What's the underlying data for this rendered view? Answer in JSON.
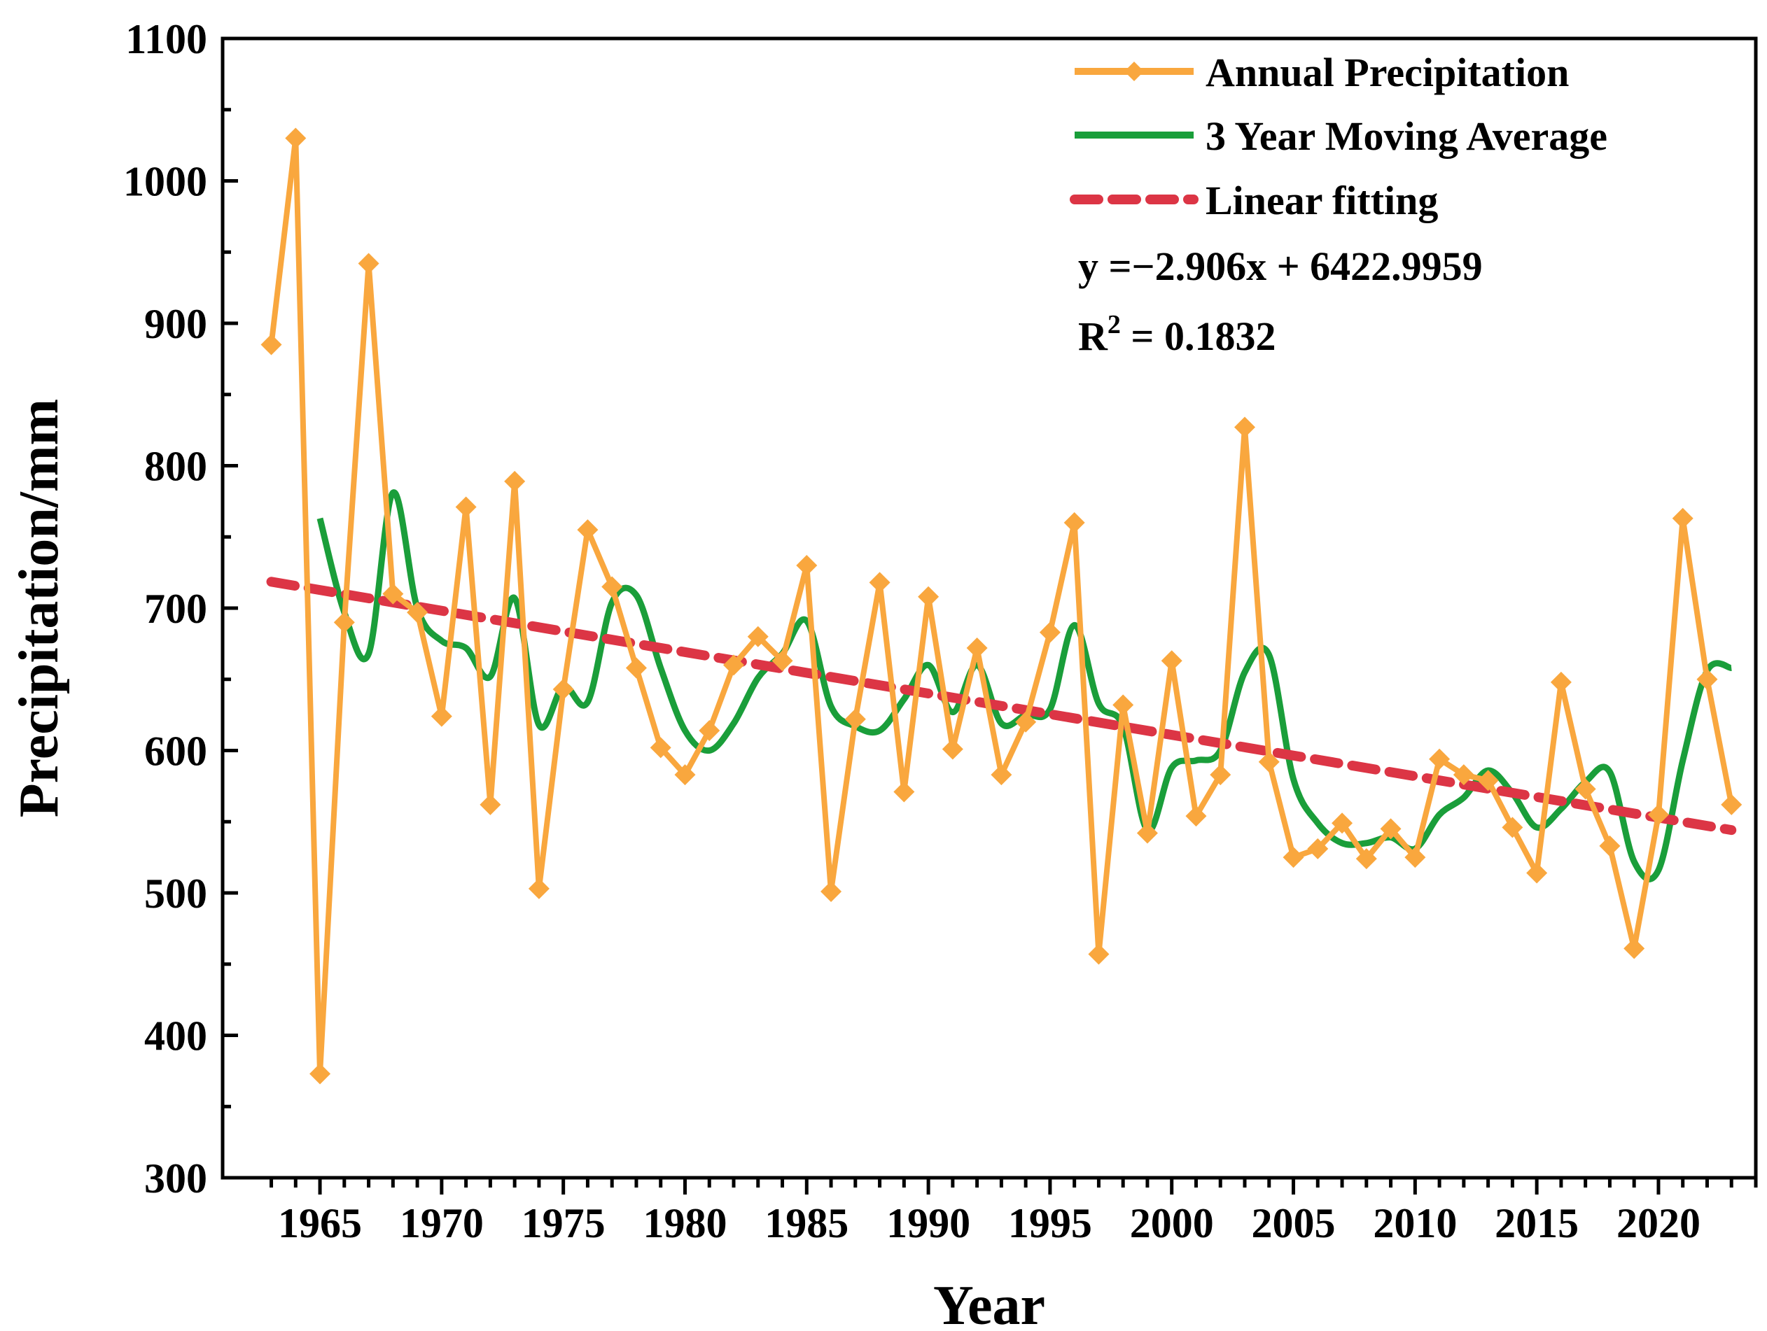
{
  "chart_data": {
    "type": "line",
    "title": "",
    "xlabel": "Year",
    "ylabel": "Precipitation/mm",
    "xlim": [
      1961,
      2024
    ],
    "ylim": [
      300,
      1100
    ],
    "x_ticks": [
      1965,
      1970,
      1975,
      1980,
      1985,
      1990,
      1995,
      2000,
      2005,
      2010,
      2015,
      2020
    ],
    "y_ticks": [
      300,
      400,
      500,
      600,
      700,
      800,
      900,
      1000,
      1100
    ],
    "x": [
      1963,
      1964,
      1965,
      1966,
      1967,
      1968,
      1969,
      1970,
      1971,
      1972,
      1973,
      1974,
      1975,
      1976,
      1977,
      1978,
      1979,
      1980,
      1981,
      1982,
      1983,
      1984,
      1985,
      1986,
      1987,
      1988,
      1989,
      1990,
      1991,
      1992,
      1993,
      1994,
      1995,
      1996,
      1997,
      1998,
      1999,
      2000,
      2001,
      2002,
      2003,
      2004,
      2005,
      2006,
      2007,
      2008,
      2009,
      2010,
      2011,
      2012,
      2013,
      2014,
      2015,
      2016,
      2017,
      2018,
      2019,
      2020,
      2021,
      2022,
      2023
    ],
    "series": [
      {
        "name": "Annual Precipitation",
        "color": "#F9A73E",
        "marker": "diamond",
        "values": [
          885,
          1030,
          373,
          690,
          942,
          710,
          697,
          624,
          771,
          562,
          789,
          503,
          643,
          755,
          715,
          658,
          602,
          583,
          614,
          660,
          680,
          663,
          730,
          501,
          622,
          718,
          571,
          708,
          601,
          672,
          583,
          620,
          683,
          760,
          457,
          632,
          542,
          663,
          554,
          583,
          827,
          592,
          525,
          531,
          549,
          524,
          545,
          525,
          594,
          583,
          579,
          546,
          514,
          648,
          573,
          533,
          461,
          555,
          763,
          650,
          562
        ]
      },
      {
        "name": "3 Year Moving Average",
        "color": "#1A9E3A",
        "values": [
          null,
          null,
          763,
          697,
          668,
          781,
          700,
          677,
          672,
          652,
          707,
          618,
          645,
          634,
          704,
          709,
          658,
          614,
          600,
          619,
          651,
          668,
          691,
          631,
          617,
          614,
          636,
          660,
          627,
          660,
          619,
          625,
          629,
          688,
          633,
          617,
          544,
          588,
          593,
          600,
          655,
          667,
          580,
          549,
          535,
          535,
          539,
          531,
          555,
          567,
          586,
          570,
          546,
          559,
          578,
          585,
          522,
          516,
          593,
          656,
          658
        ]
      },
      {
        "name": "Linear fitting",
        "color": "#DC3545",
        "style": "dashed",
        "slope": -2.906,
        "intercept": 6422.9959,
        "x_range": [
          1963,
          2023
        ]
      }
    ],
    "legend_position": "top-right",
    "annotations": {
      "equation": "y =−2.906x + 6422.9959",
      "r2_prefix": "R",
      "r2_exponent": "2",
      "r2_value": " = 0.1832"
    }
  }
}
